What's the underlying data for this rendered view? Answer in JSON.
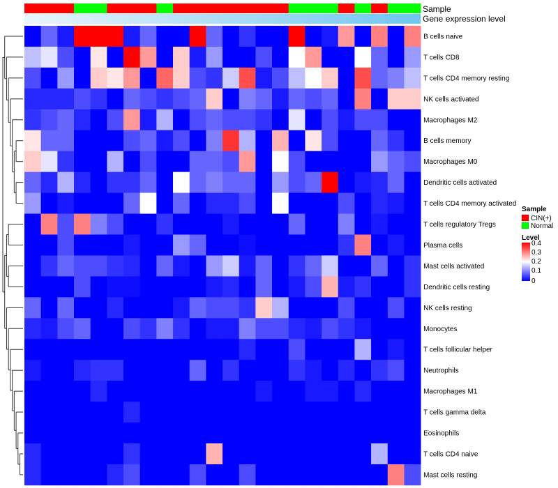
{
  "chart_data": {
    "type": "heatmap",
    "title": "",
    "rows": [
      "B cells naive",
      "T cells CD8",
      "T cells CD4 memory resting",
      "NK cells activated",
      "Macrophages M2",
      "B cells memory",
      "Macrophages M0",
      "Dendritic cells activated",
      "T cells CD4 memory activated",
      "T cells regulatory  Tregs",
      "Plasma cells",
      "Mast cells activated",
      "Dendritic cells resting",
      "NK cells resting",
      "Monocytes",
      "T cells follicular helper",
      "Neutrophils",
      "Macrophages M1",
      "T cells gamma delta",
      "Eosinophils",
      "T cells CD4 naive",
      "Mast cells resting"
    ],
    "sample_groups": [
      "CIN(+)",
      "CIN(+)",
      "CIN(+)",
      "Normal",
      "Normal",
      "CIN(+)",
      "CIN(+)",
      "CIN(+)",
      "Normal",
      "CIN(+)",
      "CIN(+)",
      "CIN(+)",
      "CIN(+)",
      "CIN(+)",
      "CIN(+)",
      "CIN(+)",
      "Normal",
      "Normal",
      "Normal",
      "CIN(+)",
      "Normal",
      "CIN(+)",
      "Normal",
      "Normal"
    ],
    "gene_expression_gradient": [
      "#eaf5fc",
      "#6ec5f0"
    ],
    "values": [
      [
        0.0,
        0.08,
        0.02,
        0.4,
        0.4,
        0.4,
        0.02,
        0.08,
        0.0,
        0.0,
        0.4,
        0.08,
        0.0,
        0.04,
        0.0,
        0.0,
        0.4,
        0.0,
        0.02,
        0.28,
        0.0,
        0.3,
        0.0,
        0.3
      ],
      [
        0.15,
        0.18,
        0.06,
        0.0,
        0.22,
        0.0,
        0.4,
        0.28,
        0.0,
        0.24,
        0.02,
        0.12,
        0.0,
        0.0,
        0.06,
        0.0,
        0.2,
        0.28,
        0.0,
        0.0,
        0.2,
        0.08,
        0.0,
        0.12
      ],
      [
        0.06,
        0.0,
        0.12,
        0.0,
        0.24,
        0.22,
        0.28,
        0.0,
        0.32,
        0.24,
        0.06,
        0.04,
        0.16,
        0.34,
        0.02,
        0.06,
        0.15,
        0.2,
        0.24,
        0.0,
        0.34,
        0.08,
        0.1,
        0.15
      ],
      [
        0.03,
        0.03,
        0.03,
        0.06,
        0.04,
        0.0,
        0.08,
        0.06,
        0.04,
        0.06,
        0.08,
        0.24,
        0.0,
        0.1,
        0.08,
        0.02,
        0.08,
        0.06,
        0.08,
        0.0,
        0.3,
        0.0,
        0.24,
        0.24
      ],
      [
        0.04,
        0.06,
        0.08,
        0.03,
        0.0,
        0.06,
        0.28,
        0.02,
        0.14,
        0.0,
        0.06,
        0.08,
        0.06,
        0.06,
        0.04,
        0.0,
        0.18,
        0.0,
        0.06,
        0.02,
        0.06,
        0.06,
        0.0,
        0.0
      ],
      [
        0.22,
        0.08,
        0.08,
        0.0,
        0.0,
        0.0,
        0.06,
        0.08,
        0.02,
        0.06,
        0.0,
        0.1,
        0.36,
        0.14,
        0.0,
        0.26,
        0.0,
        0.22,
        0.06,
        0.0,
        0.0,
        0.08,
        0.04,
        0.0
      ],
      [
        0.24,
        0.18,
        0.04,
        0.0,
        0.0,
        0.14,
        0.0,
        0.06,
        0.0,
        0.0,
        0.08,
        0.08,
        0.06,
        0.28,
        0.0,
        0.2,
        0.06,
        0.0,
        0.0,
        0.0,
        0.0,
        0.12,
        0.08,
        0.06
      ],
      [
        0.08,
        0.03,
        0.14,
        0.03,
        0.0,
        0.04,
        0.04,
        0.08,
        0.0,
        0.2,
        0.08,
        0.1,
        0.08,
        0.08,
        0.0,
        0.12,
        0.06,
        0.08,
        0.4,
        0.0,
        0.02,
        0.03,
        0.08,
        0.0
      ],
      [
        0.12,
        0.0,
        0.02,
        0.0,
        0.0,
        0.0,
        0.08,
        0.2,
        0.0,
        0.08,
        0.0,
        0.03,
        0.03,
        0.06,
        0.0,
        0.2,
        0.0,
        0.0,
        0.0,
        0.06,
        0.0,
        0.03,
        0.02,
        0.0
      ],
      [
        0.0,
        0.3,
        0.06,
        0.3,
        0.1,
        0.06,
        0.0,
        0.0,
        0.04,
        0.0,
        0.0,
        0.0,
        0.02,
        0.0,
        0.0,
        0.0,
        0.08,
        0.0,
        0.0,
        0.1,
        0.0,
        0.02,
        0.0,
        0.0
      ],
      [
        0.0,
        0.0,
        0.06,
        0.0,
        0.0,
        0.0,
        0.02,
        0.0,
        0.0,
        0.12,
        0.08,
        0.0,
        0.0,
        0.01,
        0.0,
        0.0,
        0.0,
        0.0,
        0.0,
        0.04,
        0.3,
        0.0,
        0.02,
        0.0
      ],
      [
        0.0,
        0.04,
        0.08,
        0.06,
        0.06,
        0.04,
        0.03,
        0.0,
        0.08,
        0.02,
        0.0,
        0.12,
        0.16,
        0.02,
        0.08,
        0.0,
        0.04,
        0.08,
        0.16,
        0.0,
        0.0,
        0.08,
        0.0,
        0.04
      ],
      [
        0.0,
        0.0,
        0.0,
        0.06,
        0.0,
        0.01,
        0.01,
        0.0,
        0.0,
        0.0,
        0.0,
        0.02,
        0.03,
        0.0,
        0.08,
        0.0,
        0.02,
        0.06,
        0.26,
        0.02,
        0.04,
        0.0,
        0.0,
        0.04
      ],
      [
        0.08,
        0.0,
        0.08,
        0.0,
        0.0,
        0.03,
        0.0,
        0.0,
        0.0,
        0.02,
        0.08,
        0.06,
        0.06,
        0.04,
        0.24,
        0.14,
        0.0,
        0.0,
        0.0,
        0.06,
        0.0,
        0.0,
        0.06,
        0.0
      ],
      [
        0.03,
        0.02,
        0.06,
        0.08,
        0.0,
        0.0,
        0.06,
        0.04,
        0.1,
        0.04,
        0.0,
        0.02,
        0.02,
        0.1,
        0.06,
        0.06,
        0.03,
        0.02,
        0.06,
        0.04,
        0.02,
        0.0,
        0.0,
        0.0
      ],
      [
        0.0,
        0.0,
        0.0,
        0.0,
        0.0,
        0.0,
        0.0,
        0.0,
        0.0,
        0.0,
        0.0,
        0.0,
        0.0,
        0.03,
        0.0,
        0.0,
        0.06,
        0.0,
        0.0,
        0.0,
        0.14,
        0.0,
        0.02,
        0.0
      ],
      [
        0.02,
        0.0,
        0.0,
        0.03,
        0.04,
        0.04,
        0.0,
        0.0,
        0.0,
        0.0,
        0.08,
        0.0,
        0.04,
        0.0,
        0.0,
        0.0,
        0.04,
        0.02,
        0.0,
        0.03,
        0.0,
        0.04,
        0.06,
        0.0
      ],
      [
        0.0,
        0.0,
        0.0,
        0.0,
        0.03,
        0.0,
        0.0,
        0.0,
        0.0,
        0.0,
        0.0,
        0.0,
        0.0,
        0.0,
        0.02,
        0.0,
        0.0,
        0.02,
        0.02,
        0.0,
        0.03,
        0.0,
        0.0,
        0.0
      ],
      [
        0.0,
        0.0,
        0.0,
        0.0,
        0.0,
        0.0,
        0.03,
        0.0,
        0.0,
        0.0,
        0.0,
        0.0,
        0.0,
        0.0,
        0.0,
        0.0,
        0.0,
        0.0,
        0.0,
        0.0,
        0.0,
        0.0,
        0.0,
        0.0
      ],
      [
        0.0,
        0.0,
        0.0,
        0.0,
        0.0,
        0.0,
        0.0,
        0.0,
        0.0,
        0.0,
        0.0,
        0.0,
        0.0,
        0.0,
        0.0,
        0.0,
        0.0,
        0.0,
        0.0,
        0.0,
        0.0,
        0.0,
        0.0,
        0.0
      ],
      [
        0.03,
        0.0,
        0.0,
        0.0,
        0.0,
        0.0,
        0.04,
        0.0,
        0.0,
        0.0,
        0.0,
        0.26,
        0.0,
        0.0,
        0.0,
        0.0,
        0.0,
        0.0,
        0.0,
        0.0,
        0.0,
        0.14,
        0.0,
        0.0
      ],
      [
        0.03,
        0.0,
        0.0,
        0.0,
        0.0,
        0.03,
        0.06,
        0.0,
        0.0,
        0.0,
        0.06,
        0.0,
        0.0,
        0.06,
        0.0,
        0.0,
        0.0,
        0.0,
        0.0,
        0.0,
        0.0,
        0.0,
        0.3,
        0.06
      ]
    ],
    "color_scale": {
      "title": "Level",
      "ticks": [
        "0.4",
        "0.3",
        "0.2",
        "0.1",
        "0"
      ],
      "range": [
        0,
        0.4
      ],
      "low_color": "#0000ff",
      "mid_color": "#ffffff",
      "high_color": "#ff0000"
    }
  },
  "annotations": {
    "sample_label": "Sample",
    "gene_label": "Gene expression level"
  },
  "legend": {
    "sample_title": "Sample",
    "entries": [
      {
        "label": "CIN(+)",
        "color": "#ff0000"
      },
      {
        "label": "Normal",
        "color": "#00ff00"
      }
    ]
  }
}
